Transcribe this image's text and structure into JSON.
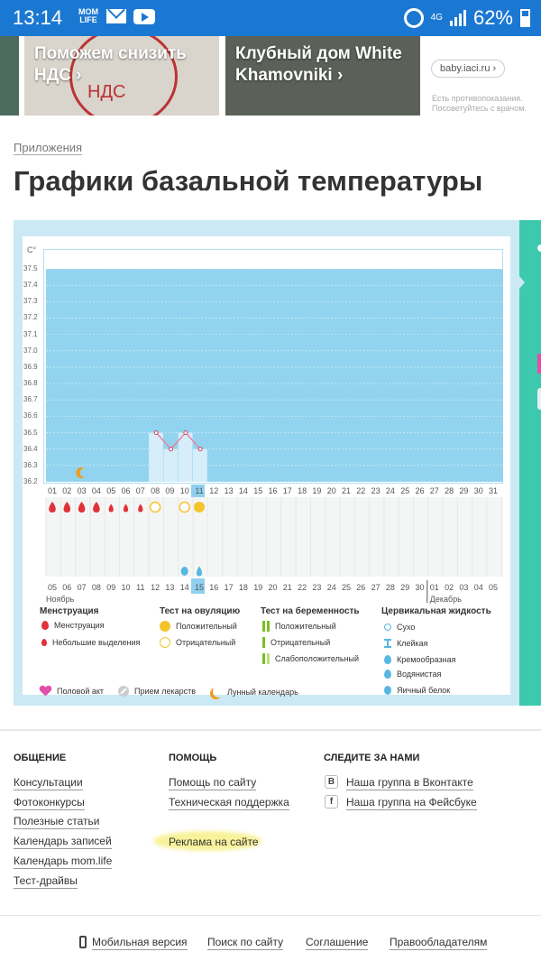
{
  "status": {
    "time": "13:14",
    "mom_label": "MOM LIFE",
    "network": "4G",
    "battery": "62%"
  },
  "ads": [
    {
      "text": ""
    },
    {
      "text": "Поможем снизить НДС ›",
      "art": "НДС"
    },
    {
      "text": "Клубный дом White Khamovniki ›"
    }
  ],
  "ad_badge": "baby.iaci.ru ›",
  "ad_note": "Есть противопоказания. Посоветуйтесь с врачом.",
  "breadcrumb": "Приложения",
  "page_title": "Графики базальной температуры",
  "chart_data": {
    "type": "line",
    "unit_label": "C°",
    "ylim": [
      36.2,
      37.5
    ],
    "y_ticks": [
      "37.5",
      "37.4",
      "37.3",
      "37.2",
      "37.1",
      "37.0",
      "36.9",
      "36.8",
      "36.7",
      "36.6",
      "36.5",
      "36.4",
      "36.3",
      "36.2"
    ],
    "cycle_days": [
      "01",
      "02",
      "03",
      "04",
      "05",
      "06",
      "07",
      "08",
      "09",
      "10",
      "11",
      "12",
      "13",
      "14",
      "15",
      "16",
      "17",
      "18",
      "19",
      "20",
      "21",
      "22",
      "23",
      "24",
      "25",
      "26",
      "27",
      "28",
      "29",
      "30",
      "31"
    ],
    "dates": [
      "05",
      "06",
      "07",
      "08",
      "09",
      "10",
      "11",
      "12",
      "13",
      "14",
      "15",
      "16",
      "17",
      "18",
      "19",
      "20",
      "21",
      "22",
      "23",
      "24",
      "25",
      "26",
      "27",
      "28",
      "29",
      "30",
      "01",
      "02",
      "03",
      "04",
      "05"
    ],
    "red_dates": [
      "09",
      "10",
      "16",
      "17",
      "23",
      "24",
      "30",
      "01"
    ],
    "highlight_day": "11",
    "highlight_date": "15",
    "months": [
      "Ноябрь",
      "Декабрь"
    ],
    "series": [
      {
        "x": [
          "08",
          "09",
          "10",
          "11"
        ],
        "y": [
          36.5,
          36.4,
          36.5,
          36.4
        ]
      }
    ],
    "moon_day": "03",
    "menstruation_days": [
      "01",
      "02",
      "03",
      "04"
    ],
    "spotting_days": [
      "05",
      "06",
      "07"
    ],
    "ovulation_negative_days": [
      "08",
      "10"
    ],
    "ovulation_positive_days": [
      "11"
    ],
    "mucus_egg_white_days": [
      "10"
    ],
    "mucus_watery_days": [
      "11"
    ]
  },
  "legend": {
    "menstruation": {
      "title": "Менструация",
      "items": [
        "Менструация",
        "Небольшие выделения"
      ]
    },
    "ovulation": {
      "title": "Тест на овуляцию",
      "items": [
        "Положительный",
        "Отрицательный"
      ]
    },
    "pregnancy": {
      "title": "Тест на беременность",
      "items": [
        "Положительный",
        "Отрицательный",
        "Слабоположительный"
      ]
    },
    "mucus": {
      "title": "Цервикальная жидкость",
      "items": [
        "Сухо",
        "Клейкая",
        "Кремообразная",
        "Водянистая",
        "Яичный белок"
      ]
    },
    "bottom": [
      "Половой акт",
      "Прием лекарств",
      "Лунный календарь"
    ]
  },
  "footer": {
    "col1": {
      "title": "ОБЩЕНИЕ",
      "links": [
        "Консультации",
        "Фотоконкурсы",
        "Полезные статьи",
        "Календарь записей",
        "Календарь mom.life",
        "Тест-драйвы"
      ]
    },
    "col2": {
      "title": "ПОМОЩЬ",
      "links": [
        "Помощь по сайту",
        "Техническая поддержка",
        "Реклама на сайте"
      ]
    },
    "col3": {
      "title": "СЛЕДИТЕ ЗА НАМИ",
      "links": [
        "Наша группа в Вконтакте",
        "Наша группа на Фейсбуке"
      ],
      "icons": [
        "В",
        "f"
      ]
    },
    "bottom": [
      "Мобильная версия",
      "Поиск по сайту",
      "Соглашение",
      "Правообладателям"
    ]
  },
  "colors": {
    "status_bar": "#1b78d2",
    "plot_fill": "#92d4ef",
    "frame": "#cbe9f5",
    "panel": "#3dc9ad"
  }
}
